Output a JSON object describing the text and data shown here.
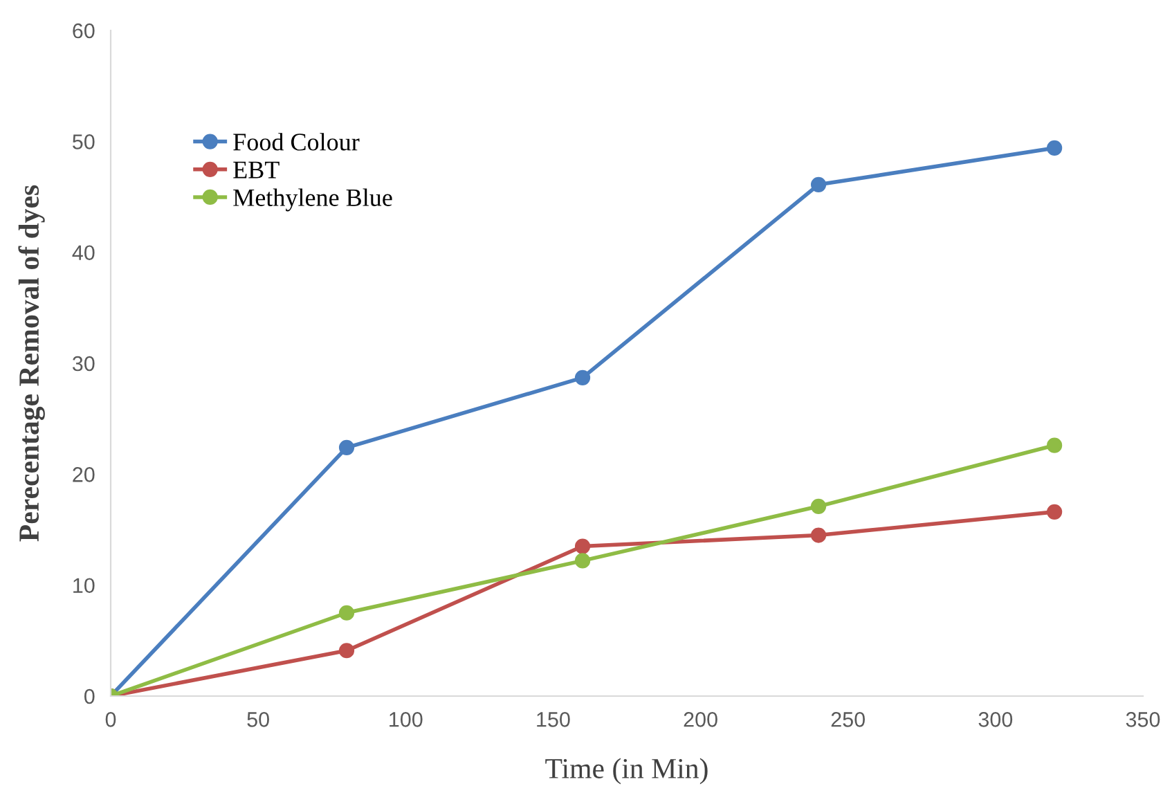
{
  "chart_data": {
    "type": "line",
    "xlabel": "Time (in Min)",
    "ylabel": "Perecentage Removal of dyes",
    "x": [
      0,
      80,
      160,
      240,
      320
    ],
    "series": [
      {
        "name": "Food Colour",
        "color": "#4a7ebf",
        "values": [
          0,
          22.4,
          28.7,
          46.1,
          49.4
        ]
      },
      {
        "name": "EBT",
        "color": "#c0504d",
        "values": [
          0,
          4.1,
          13.5,
          14.5,
          16.6
        ]
      },
      {
        "name": "Methylene Blue",
        "color": "#8fbc45",
        "values": [
          0,
          7.5,
          12.2,
          17.1,
          22.6
        ]
      }
    ],
    "xlim": [
      0,
      350
    ],
    "xticks": [
      0,
      50,
      100,
      150,
      200,
      250,
      300,
      350
    ],
    "ylim": [
      0,
      60
    ],
    "yticks": [
      0,
      10,
      20,
      30,
      40,
      50,
      60
    ],
    "grid": false,
    "legend": "top left",
    "marker": "circle",
    "line_style": "solid"
  }
}
